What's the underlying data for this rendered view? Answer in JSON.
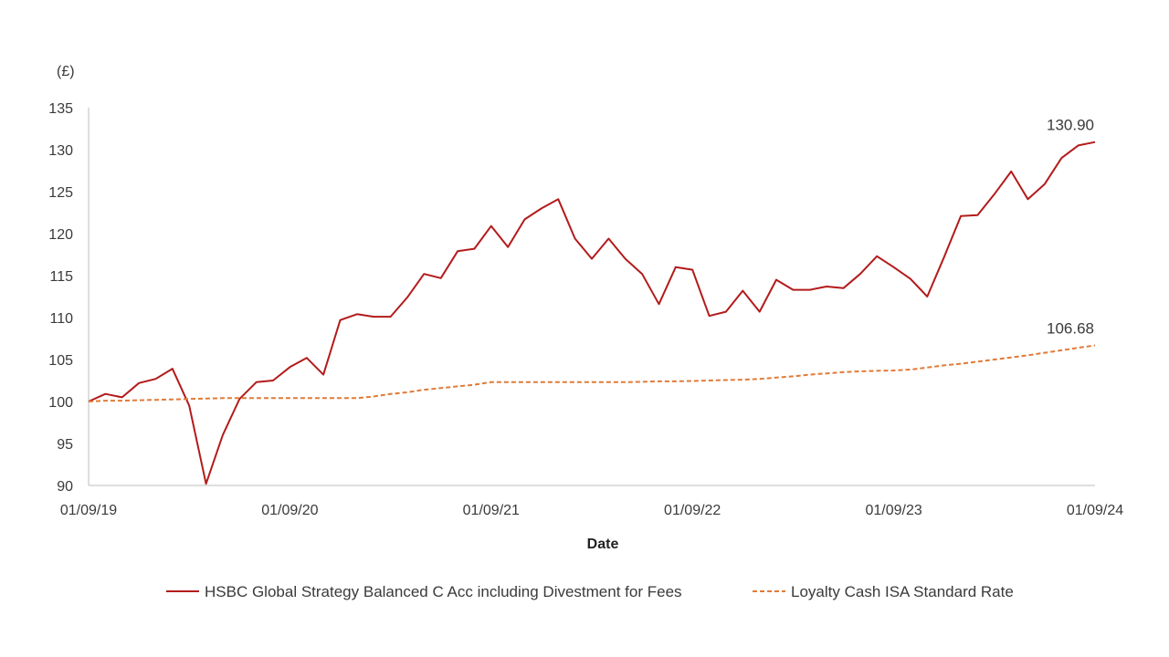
{
  "chart_data": {
    "type": "line",
    "title": "",
    "ylabel": "(£)",
    "xlabel": "Date",
    "ylim": [
      90,
      135
    ],
    "yticks": [
      90,
      95,
      100,
      105,
      110,
      115,
      120,
      125,
      130,
      135
    ],
    "xlim": [
      0,
      60
    ],
    "xticks": [
      {
        "pos": 0,
        "label": "01/09/19"
      },
      {
        "pos": 12,
        "label": "01/09/20"
      },
      {
        "pos": 24,
        "label": "01/09/21"
      },
      {
        "pos": 36,
        "label": "01/09/22"
      },
      {
        "pos": 48,
        "label": "01/09/23"
      },
      {
        "pos": 60,
        "label": "01/09/24"
      }
    ],
    "series": [
      {
        "name": "HSBC Global Strategy Balanced C Acc including Divestment for Fees",
        "color": "#b31b1b",
        "style": "solid",
        "end_label": "130.90",
        "values": [
          100,
          100.9,
          100.5,
          102.2,
          102.7,
          103.9,
          99.5,
          90.2,
          96.0,
          100.3,
          102.3,
          102.5,
          104.1,
          105.2,
          103.2,
          109.7,
          110.4,
          110.1,
          110.1,
          112.4,
          115.2,
          114.7,
          117.9,
          118.2,
          120.9,
          118.4,
          121.7,
          123.0,
          124.1,
          119.4,
          117.0,
          119.4,
          117.0,
          115.2,
          111.6,
          116.0,
          115.7,
          110.2,
          110.7,
          113.2,
          110.7,
          114.5,
          113.3,
          113.3,
          113.7,
          113.5,
          115.2,
          117.3,
          116.0,
          114.6,
          112.5,
          117.2,
          122.1,
          122.2,
          124.7,
          127.4,
          124.1,
          125.9,
          129.0,
          130.5,
          130.9
        ]
      },
      {
        "name": "Loyalty Cash ISA Standard Rate",
        "color": "#e07b39",
        "style": "dashed",
        "end_label": "106.68",
        "values": [
          100,
          100.1,
          100.1,
          100.15,
          100.2,
          100.25,
          100.3,
          100.35,
          100.4,
          100.4,
          100.4,
          100.4,
          100.4,
          100.4,
          100.4,
          100.4,
          100.4,
          100.6,
          100.9,
          101.1,
          101.4,
          101.6,
          101.8,
          102.0,
          102.3,
          102.3,
          102.3,
          102.3,
          102.3,
          102.3,
          102.3,
          102.3,
          102.3,
          102.35,
          102.4,
          102.4,
          102.45,
          102.5,
          102.55,
          102.6,
          102.7,
          102.85,
          103.0,
          103.2,
          103.35,
          103.5,
          103.6,
          103.65,
          103.7,
          103.8,
          104.05,
          104.3,
          104.5,
          104.75,
          105.0,
          105.25,
          105.5,
          105.8,
          106.1,
          106.4,
          106.68
        ]
      }
    ]
  }
}
